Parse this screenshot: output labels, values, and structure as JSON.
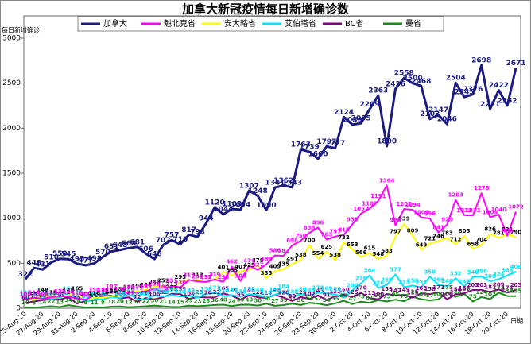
{
  "chart_data": {
    "type": "line",
    "title": "加拿大新冠疫情每日新增确诊数",
    "y_label": "每日新增确诊",
    "x_label": "日期",
    "legend": "top",
    "categories": [
      "25-Aug-20",
      null,
      "27-Aug-20",
      null,
      "29-Aug-20",
      null,
      "31-Aug-20",
      null,
      "2-Sep-20",
      null,
      "4-Sep-20",
      null,
      "6-Sep-20",
      null,
      "8-Sep-20",
      null,
      "10-Sep-20",
      null,
      "12-Sep-20",
      null,
      "14-Sep-20",
      null,
      "16-Sep-20",
      null,
      "18-Sep-20",
      null,
      "20-Sep-20",
      null,
      "22-Sep-20",
      null,
      "24-Sep-20",
      null,
      "26-Sep-20",
      null,
      "28-Sep-20",
      null,
      "30-Sep-20",
      null,
      "2-Oct-20",
      null,
      "4-Oct-20",
      null,
      "6-Oct-20",
      null,
      "8-Oct-20",
      null,
      "10-Oct-20",
      null,
      "12-Oct-20",
      null,
      "14-Oct-20",
      null,
      "16-Oct-20",
      null,
      "18-Oct-20",
      null,
      "20-Oct-20",
      null
    ],
    "ylim": [
      0,
      3000
    ],
    "yticks": [
      0,
      500,
      1000,
      1500,
      2000,
      2500,
      3000
    ],
    "series": [
      {
        "name": "加拿大",
        "color": "#1c1c80",
        "values": [
          322,
          448,
          431,
          510,
          550,
          545,
          495,
          477,
          498,
          570,
          631,
          648,
          668,
          681,
          606,
          546,
          702,
          757,
          710,
          817,
          793,
          944,
          1120,
          1044,
          1103,
          1094,
          1307,
          1248,
          1090,
          1341,
          1362,
          1343,
          1763,
          1739,
          1660,
          1797,
          1777,
          2124,
          2039,
          2055,
          2209,
          2363,
          1800,
          2436,
          2558,
          2500,
          2468,
          2103,
          2147,
          2046,
          2504,
          2345,
          2376,
          2698,
          2211,
          2422,
          2252,
          2671
        ]
      },
      {
        "name": "魁北克省",
        "color": "#ff00ff",
        "values": [
          100,
          118,
          106,
          123,
          134,
          130,
          110,
          95,
          150,
          152,
          187,
          158,
          180,
          171,
          189,
          216,
          180,
          251,
          230,
          313,
          297,
          292,
          319,
          293,
          462,
          303,
          471,
          427,
          489,
          586,
          582,
          698,
          750,
          838,
          896,
          763,
          797,
          815,
          933,
          1052,
          1107,
          1191,
          1364,
          920,
          1102,
          1094,
          1009,
          996,
          841,
          929,
          1203,
          1033,
          1031,
          1278,
          1009,
          1040,
          806,
          1072
        ]
      },
      {
        "name": "安大略省",
        "color": "#ffff00",
        "label_color": "#000000",
        "values": [
          100,
          95,
          148,
          118,
          132,
          145,
          165,
          100,
          116,
          118,
          133,
          149,
          170,
          190,
          204,
          240,
          251,
          213,
          293,
          315,
          313,
          293,
          319,
          401,
          365,
          407,
          425,
          478,
          335,
          409,
          435,
          491,
          538,
          700,
          554,
          625,
          538,
          732,
          653,
          566,
          615,
          548,
          583,
          797,
          939,
          809,
          649,
          721,
          746,
          783,
          712,
          805,
          658,
          704,
          826,
          781,
          821,
          790
        ]
      },
      {
        "name": "艾伯塔省",
        "color": "#00e5ff",
        "values": [
          120,
          100,
          130,
          105,
          118,
          164,
          120,
          80,
          95,
          100,
          124,
          116,
          158,
          106,
          98,
          145,
          130,
          150,
          130,
          142,
          120,
          158,
          173,
          136,
          147,
          130,
          158,
          148,
          118,
          150,
          184,
          130,
          156,
          145,
          173,
          165,
          154,
          122,
          200,
          276,
          364,
          226,
          259,
          377,
          233,
          252,
          231,
          350,
          259,
          246,
          332,
          243,
          346,
          356,
          300,
          324,
          364,
          406
        ]
      },
      {
        "name": "BC省",
        "color": "#800080",
        "values": [
          60,
          75,
          90,
          100,
          96,
          124,
          52,
          80,
          90,
          139,
          139,
          110,
          121,
          72,
          114,
          100,
          123,
          161,
          159,
          104,
          125,
          120,
          122,
          165,
          139,
          95,
          145,
          122,
          114,
          148,
          120,
          80,
          125,
          102,
          143,
          91,
          132,
          150,
          125,
          170,
          113,
          100,
          159,
          142,
          149,
          119,
          166,
          158,
          177,
          100,
          154,
          167,
          203,
          203,
          181,
          209,
          174,
          203
        ]
      },
      {
        "name": "曼省",
        "color": "#1a8a1a",
        "values": [
          10,
          5,
          14,
          22,
          13,
          34,
          20,
          8,
          11,
          9,
          18,
          20,
          12,
          17,
          22,
          30,
          21,
          14,
          15,
          29,
          23,
          28,
          36,
          40,
          24,
          39,
          40,
          30,
          50,
          27,
          35,
          51,
          36,
          61,
          52,
          34,
          55,
          83,
          47,
          73,
          61,
          90,
          75,
          95,
          78,
          126,
          101,
          87,
          100,
          175,
          128,
          160,
          75,
          124,
          102,
          173,
          136,
          135
        ]
      }
    ]
  }
}
